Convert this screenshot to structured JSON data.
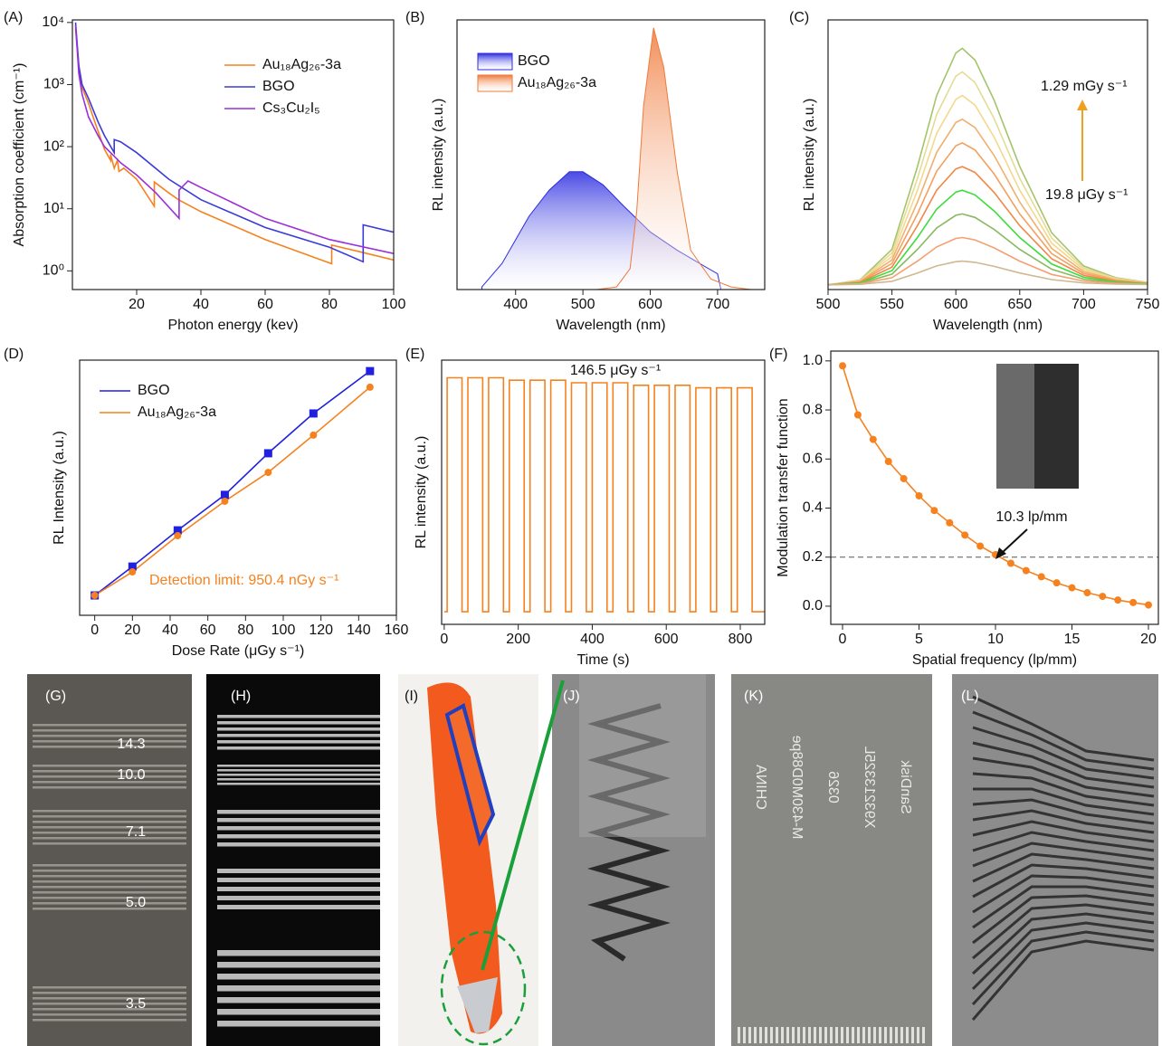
{
  "chart_data": [
    {
      "type": "line",
      "panel": "(A)",
      "x_label": "Photon energy (kev)",
      "y_label": "Absorption coefficient (cm⁻¹)",
      "log_y": true,
      "xlim": [
        0,
        100
      ],
      "xticks": [
        20,
        40,
        60,
        80,
        100
      ],
      "ylim": [
        0.5,
        11000
      ],
      "yticks": [
        {
          "value": 1,
          "label": "10⁰"
        },
        {
          "value": 10,
          "label": "10¹"
        },
        {
          "value": 100,
          "label": "10²"
        },
        {
          "value": 1000,
          "label": "10³"
        },
        {
          "value": 10000,
          "label": "10⁴"
        }
      ],
      "series": [
        {
          "name": "Au₁₈Ag₂₆-3a",
          "color": "#f5821f",
          "x": [
            1,
            2,
            3,
            5,
            7,
            10,
            11.9,
            11.9,
            13,
            14,
            14.5,
            16,
            20,
            25.5,
            25.5,
            30,
            33,
            40,
            60,
            80.7,
            80.7,
            90,
            100
          ],
          "values": [
            8000,
            2000,
            900,
            500,
            250,
            90,
            60,
            75,
            45,
            60,
            40,
            45,
            30,
            11,
            27,
            18,
            14,
            9,
            3.2,
            1.3,
            2.6,
            2,
            1.5
          ]
        },
        {
          "name": "BGO",
          "color": "#3a3adb",
          "x": [
            1,
            2,
            3,
            5,
            8,
            10,
            13,
            13,
            15,
            20,
            30,
            40,
            60,
            80,
            90.5,
            90.5,
            100
          ],
          "values": [
            10000,
            2000,
            1000,
            600,
            250,
            150,
            80,
            130,
            120,
            80,
            30,
            14,
            5,
            2.4,
            1.4,
            5.5,
            4.2
          ]
        },
        {
          "name": "Cs₃Cu₂I₅",
          "color": "#9b30d9",
          "x": [
            1,
            2,
            3,
            5,
            8,
            10,
            13,
            15,
            20,
            26,
            33.2,
            33.2,
            36,
            40,
            60,
            80,
            100
          ],
          "values": [
            9000,
            1500,
            700,
            300,
            150,
            100,
            70,
            55,
            35,
            18,
            7,
            20,
            28,
            22,
            7,
            3.2,
            1.9
          ]
        }
      ]
    },
    {
      "type": "area",
      "panel": "(B)",
      "x_label": "Wavelength (nm)",
      "y_label": "RL intensity (a.u.)",
      "xlim": [
        313,
        770
      ],
      "xticks": [
        400,
        500,
        600,
        700
      ],
      "ylim": [
        0,
        1.03
      ],
      "series": [
        {
          "name": "BGO",
          "color": "#2b2be0",
          "x": [
            350,
            380,
            420,
            450,
            480,
            500,
            530,
            560,
            600,
            640,
            680,
            700,
            705
          ],
          "values": [
            0.01,
            0.1,
            0.28,
            0.38,
            0.45,
            0.45,
            0.4,
            0.32,
            0.22,
            0.15,
            0.09,
            0.06,
            0
          ]
        },
        {
          "name": "Au₁₈Ag₂₆-3a",
          "color": "#f07a3a",
          "x": [
            520,
            550,
            570,
            580,
            590,
            605,
            620,
            640,
            660,
            690,
            720,
            750
          ],
          "values": [
            0,
            0.01,
            0.08,
            0.3,
            0.7,
            1.0,
            0.85,
            0.45,
            0.15,
            0.04,
            0.01,
            0
          ]
        }
      ]
    },
    {
      "type": "line",
      "panel": "(C)",
      "x_label": "Wavelength (nm)",
      "y_label": "RL intensity (a.u.)",
      "xlim": [
        500,
        750
      ],
      "xticks": [
        500,
        550,
        600,
        650,
        700,
        750
      ],
      "ylim": [
        -0.02,
        1.12
      ],
      "annotations": [
        "1.29 mGy s⁻¹",
        "19.8 μGy s⁻¹"
      ],
      "x": [
        500,
        525,
        550,
        570,
        585,
        600,
        605,
        615,
        630,
        650,
        675,
        700,
        725,
        750
      ],
      "series": [
        {
          "color": "#a4c46c",
          "values": [
            0,
            0.02,
            0.15,
            0.5,
            0.8,
            0.98,
            1,
            0.95,
            0.78,
            0.5,
            0.22,
            0.08,
            0.03,
            0.01
          ]
        },
        {
          "color": "#e4dc94",
          "values": [
            0,
            0.018,
            0.135,
            0.45,
            0.72,
            0.882,
            0.9,
            0.855,
            0.702,
            0.45,
            0.198,
            0.072,
            0.027,
            0.009
          ]
        },
        {
          "color": "#f4d88c",
          "values": [
            0,
            0.016,
            0.12,
            0.4,
            0.64,
            0.784,
            0.8,
            0.76,
            0.624,
            0.4,
            0.176,
            0.064,
            0.024,
            0.008
          ]
        },
        {
          "color": "#f0b070",
          "values": [
            0,
            0.014,
            0.105,
            0.35,
            0.56,
            0.686,
            0.7,
            0.665,
            0.546,
            0.35,
            0.154,
            0.056,
            0.021,
            0.007
          ]
        },
        {
          "color": "#f4a060",
          "values": [
            0,
            0.012,
            0.09,
            0.3,
            0.48,
            0.588,
            0.6,
            0.57,
            0.468,
            0.3,
            0.132,
            0.048,
            0.018,
            0.006
          ]
        },
        {
          "color": "#f08848",
          "values": [
            0,
            0.01,
            0.075,
            0.25,
            0.4,
            0.49,
            0.5,
            0.475,
            0.39,
            0.25,
            0.11,
            0.04,
            0.015,
            0.005
          ]
        },
        {
          "color": "#3cdc3c",
          "values": [
            0,
            0.008,
            0.06,
            0.2,
            0.32,
            0.392,
            0.4,
            0.38,
            0.312,
            0.2,
            0.088,
            0.032,
            0.012,
            0.004
          ]
        },
        {
          "color": "#88b860",
          "values": [
            0,
            0.006,
            0.045,
            0.15,
            0.24,
            0.294,
            0.3,
            0.285,
            0.234,
            0.15,
            0.066,
            0.024,
            0.009,
            0.003
          ]
        },
        {
          "color": "#f4a070",
          "values": [
            0,
            0.004,
            0.03,
            0.1,
            0.16,
            0.196,
            0.2,
            0.19,
            0.156,
            0.1,
            0.044,
            0.016,
            0.006,
            0.002
          ]
        },
        {
          "color": "#d0b890",
          "values": [
            0,
            0.002,
            0.015,
            0.05,
            0.08,
            0.098,
            0.1,
            0.095,
            0.078,
            0.05,
            0.022,
            0.008,
            0.003,
            0.001
          ]
        }
      ]
    },
    {
      "type": "scatter",
      "panel": "(D)",
      "x_label": "Dose Rate (μGy s⁻¹)",
      "y_label": "RL Intensity (a.u.)",
      "xlim": [
        -8,
        160
      ],
      "xticks": [
        0,
        20,
        40,
        60,
        80,
        100,
        120,
        140,
        160
      ],
      "ylim": [
        0,
        1
      ],
      "annotations": [
        "Detection limit: 950.4 nGy s⁻¹"
      ],
      "x": [
        0,
        20,
        44,
        69,
        92,
        116,
        146
      ],
      "series": [
        {
          "name": "BGO",
          "color": "#2020e0",
          "marker": "square",
          "values": [
            0.078,
            0.191,
            0.333,
            0.472,
            0.635,
            0.791,
            0.957
          ]
        },
        {
          "name": "Au₁₈Ag₂₆-3a",
          "color": "#f5821f",
          "marker": "circle",
          "values": [
            0.078,
            0.17,
            0.312,
            0.447,
            0.56,
            0.706,
            0.894
          ]
        }
      ]
    },
    {
      "type": "line",
      "panel": "(E)",
      "x_label": "Time (s)",
      "y_label": "RL intensity (a.u.)",
      "xlim": [
        -7,
        866
      ],
      "xticks": [
        0,
        200,
        400,
        600,
        800
      ],
      "ylim": [
        -0.03,
        1.02
      ],
      "annotations": [
        "146.5 μGy s⁻¹"
      ],
      "series": [
        {
          "color": "#f5821f",
          "x": [
            0,
            8,
            8,
            48,
            48,
            64,
            64,
            104,
            104,
            120,
            120,
            160,
            160,
            176,
            176,
            216,
            216,
            232,
            232,
            272,
            272,
            288,
            288,
            328,
            328,
            344,
            344,
            384,
            384,
            400,
            400,
            440,
            440,
            456,
            456,
            496,
            496,
            512,
            512,
            552,
            552,
            568,
            568,
            608,
            608,
            624,
            624,
            664,
            664,
            680,
            680,
            720,
            720,
            736,
            736,
            776,
            776,
            792,
            792,
            832,
            832,
            866
          ],
          "values": [
            0.02,
            0.02,
            0.95,
            0.95,
            0.02,
            0.02,
            0.95,
            0.95,
            0.02,
            0.02,
            0.95,
            0.95,
            0.02,
            0.02,
            0.94,
            0.94,
            0.02,
            0.02,
            0.94,
            0.94,
            0.02,
            0.02,
            0.94,
            0.94,
            0.02,
            0.02,
            0.93,
            0.93,
            0.02,
            0.02,
            0.93,
            0.93,
            0.02,
            0.02,
            0.93,
            0.93,
            0.02,
            0.02,
            0.92,
            0.92,
            0.02,
            0.02,
            0.92,
            0.92,
            0.02,
            0.02,
            0.92,
            0.92,
            0.02,
            0.02,
            0.91,
            0.91,
            0.02,
            0.02,
            0.91,
            0.91,
            0.02,
            0.02,
            0.91,
            0.91,
            0.02,
            0.02
          ]
        }
      ]
    },
    {
      "type": "line",
      "panel": "(F)",
      "x_label": "Spatial frequency (lp/mm)",
      "y_label": "Modulation transfer function",
      "xlim": [
        -0.77,
        20.65
      ],
      "xticks": [
        0,
        5,
        10,
        15,
        20
      ],
      "ylim": [
        -0.074,
        1.04
      ],
      "yticks": [
        {
          "value": 0,
          "label": "0.0"
        },
        0.2,
        0.4,
        0.6,
        0.8,
        {
          "value": 1,
          "label": "1.0"
        }
      ],
      "reference_line": 0.2,
      "annotations": [
        "10.3 lp/mm"
      ],
      "x": [
        0,
        1,
        2,
        3,
        4,
        5,
        6,
        7,
        8,
        9,
        10,
        11,
        12,
        13,
        14,
        15,
        16,
        17,
        18,
        19,
        20
      ],
      "series": [
        {
          "color": "#f5821f",
          "marker": "circle",
          "values": [
            0.98,
            0.78,
            0.68,
            0.59,
            0.52,
            0.45,
            0.39,
            0.34,
            0.29,
            0.245,
            0.21,
            0.175,
            0.145,
            0.12,
            0.095,
            0.075,
            0.055,
            0.04,
            0.025,
            0.015,
            0.005
          ]
        }
      ]
    }
  ],
  "images": [
    {
      "label": "(G)",
      "texts": [
        "14.3",
        "10.0",
        "7.1",
        "5.0",
        "3.5"
      ]
    },
    {
      "label": "(H)"
    },
    {
      "label": "(I)"
    },
    {
      "label": "(J)"
    },
    {
      "label": "(K)",
      "texts": [
        "SanDisk",
        "X93213325L",
        "0326",
        "M-430M0D88pe",
        "CHINA"
      ]
    },
    {
      "label": "(L)"
    }
  ]
}
